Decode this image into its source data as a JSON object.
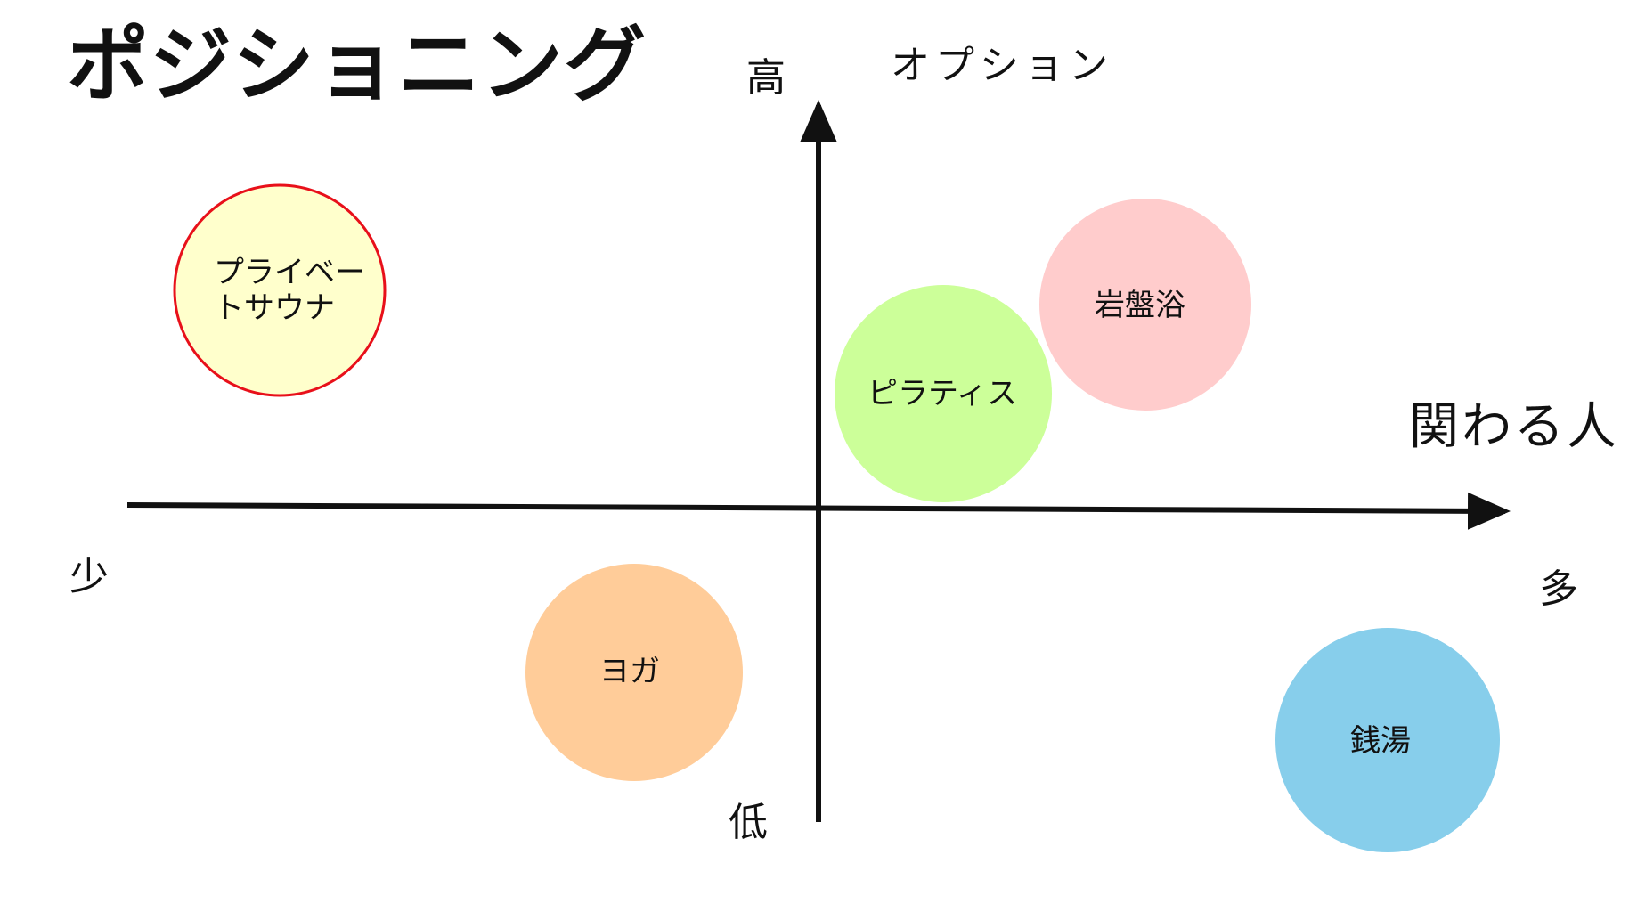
{
  "title": "ポジショニング",
  "axes": {
    "y_name": "オプション",
    "y_high": "高",
    "y_low": "低",
    "x_name": "関わる人",
    "x_low": "少",
    "x_high": "多"
  },
  "items": [
    {
      "id": "private-sauna",
      "lines": [
        "プライベー",
        "トサウナ"
      ],
      "fill": "#FFFFCC",
      "stroke": "#E8101A"
    },
    {
      "id": "iwabanyoku",
      "lines": [
        "岩盤浴"
      ],
      "fill": "#FFCCCC",
      "stroke": ""
    },
    {
      "id": "pilates",
      "lines": [
        "ピラティス"
      ],
      "fill": "#CCFF99",
      "stroke": ""
    },
    {
      "id": "yoga",
      "lines": [
        "ヨガ"
      ],
      "fill": "#FFCC99",
      "stroke": ""
    },
    {
      "id": "sento",
      "lines": [
        "銭湯"
      ],
      "fill": "#87CEEB",
      "stroke": ""
    }
  ]
}
